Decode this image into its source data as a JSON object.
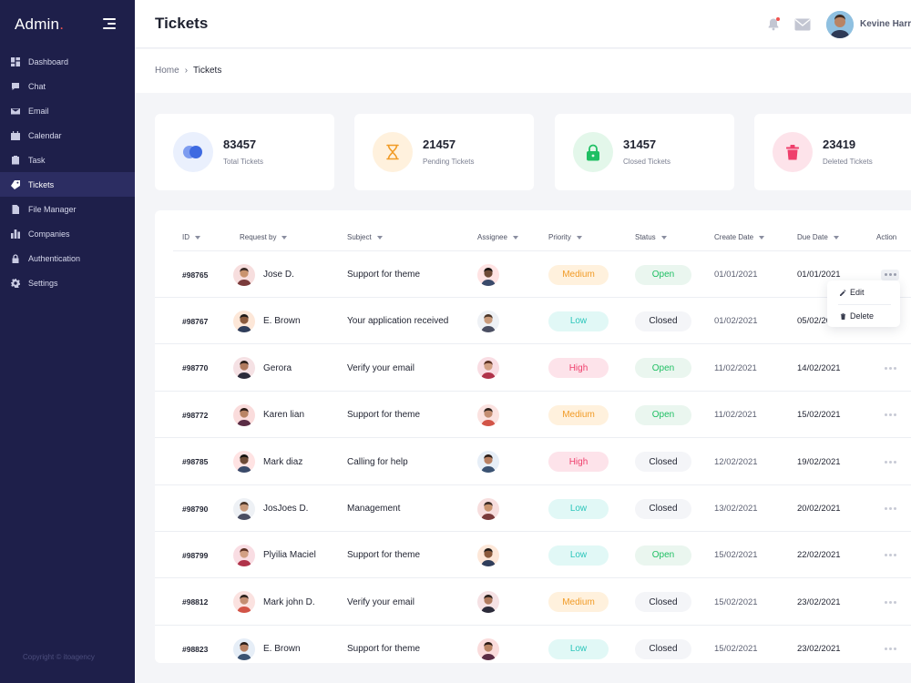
{
  "sidebar": {
    "brand": "Admin",
    "brand_dot": ".",
    "items": [
      {
        "label": "Dashboard",
        "icon": "dashboard-icon",
        "active": false
      },
      {
        "label": "Chat",
        "icon": "chat-icon",
        "active": false
      },
      {
        "label": "Email",
        "icon": "email-icon",
        "active": false
      },
      {
        "label": "Calendar",
        "icon": "calendar-icon",
        "active": false
      },
      {
        "label": "Task",
        "icon": "task-icon",
        "active": false
      },
      {
        "label": "Tickets",
        "icon": "ticket-icon",
        "active": true
      },
      {
        "label": "File Manager",
        "icon": "file-icon",
        "active": false
      },
      {
        "label": "Companies",
        "icon": "companies-icon",
        "active": false
      },
      {
        "label": "Authentication",
        "icon": "lock-icon",
        "active": false
      },
      {
        "label": "Settings",
        "icon": "gear-icon",
        "active": false
      }
    ],
    "copyright": "Copyright © itoagency"
  },
  "header": {
    "title": "Tickets",
    "user_name": "Kevine Harr"
  },
  "breadcrumb": {
    "home": "Home",
    "separator": "›",
    "current": "Tickets"
  },
  "stats": [
    {
      "value": "83457",
      "label": "Total Tickets",
      "color": "#3e6ae1",
      "bg": "#eaf0fd",
      "icon": "total-tickets-icon"
    },
    {
      "value": "21457",
      "label": "Pending Tickets",
      "color": "#f19b26",
      "bg": "#fff1dd",
      "icon": "hourglass-icon"
    },
    {
      "value": "31457",
      "label": "Closed Tickets",
      "color": "#1fbf63",
      "bg": "#e3f7ea",
      "icon": "lock-icon"
    },
    {
      "value": "23419",
      "label": "Deleted Tickets",
      "color": "#ef3f6c",
      "bg": "#fde3ea",
      "icon": "trash-icon"
    }
  ],
  "table": {
    "columns": [
      "ID",
      "Request by",
      "Subject",
      "Assignee",
      "Priority",
      "Status",
      "Create Date",
      "Due Date",
      "Action"
    ],
    "rows": [
      {
        "id": "#98765",
        "requester": "Jose D.",
        "subject": "Support for theme",
        "priority": "Medium",
        "status": "Open",
        "created": "01/01/2021",
        "due": "01/01/2021"
      },
      {
        "id": "#98767",
        "requester": "E. Brown",
        "subject": "Your application received",
        "priority": "Low",
        "status": "Closed",
        "created": "01/02/2021",
        "due": "05/02/2021"
      },
      {
        "id": "#98770",
        "requester": "Gerora",
        "subject": "Verify your email",
        "priority": "High",
        "status": "Open",
        "created": "11/02/2021",
        "due": "14/02/2021"
      },
      {
        "id": "#98772",
        "requester": "Karen lian",
        "subject": "Support for theme",
        "priority": "Medium",
        "status": "Open",
        "created": "11/02/2021",
        "due": "15/02/2021"
      },
      {
        "id": "#98785",
        "requester": "Mark diaz",
        "subject": "Calling for help",
        "priority": "High",
        "status": "Closed",
        "created": "12/02/2021",
        "due": "19/02/2021"
      },
      {
        "id": "#98790",
        "requester": "JosJoes  D.",
        "subject": "Management",
        "priority": "Low",
        "status": "Closed",
        "created": "13/02/2021",
        "due": "20/02/2021"
      },
      {
        "id": "#98799",
        "requester": "Plyilia Maciel",
        "subject": "Support for theme",
        "priority": "Low",
        "status": "Open",
        "created": "15/02/2021",
        "due": "22/02/2021"
      },
      {
        "id": "#98812",
        "requester": "Mark john D.",
        "subject": "Verify your email",
        "priority": "Medium",
        "status": "Closed",
        "created": "15/02/2021",
        "due": "23/02/2021"
      },
      {
        "id": "#98823",
        "requester": "E. Brown",
        "subject": "Support for theme",
        "priority": "Low",
        "status": "Closed",
        "created": "15/02/2021",
        "due": "23/02/2021"
      }
    ]
  },
  "action_menu": {
    "edit": "Edit",
    "delete": "Delete"
  }
}
